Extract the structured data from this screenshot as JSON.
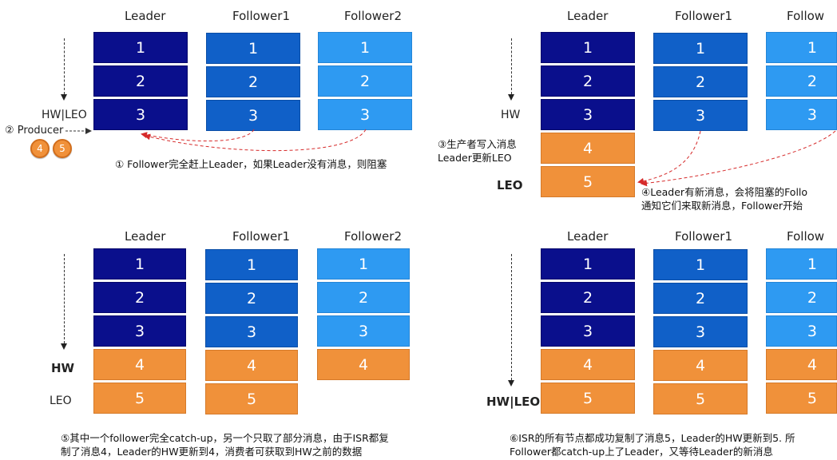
{
  "columns": {
    "leader": "Leader",
    "follower1": "Follower1",
    "follower2": "Follower2",
    "follower_cut": "Follow"
  },
  "messages": [
    "1",
    "2",
    "3",
    "4",
    "5"
  ],
  "labels": {
    "hw_leo": "HW|LEO",
    "hw": "HW",
    "leo": "LEO",
    "producer": "② Producer",
    "producer_msgs": [
      "4",
      "5"
    ]
  },
  "captions": {
    "p1": "① Follower完全赶上Leader，如果Leader没有消息，则阻塞",
    "p2_step3_line1": "③生产者写入消息",
    "p2_step3_line2": "Leader更新LEO",
    "p2_step4_line1": "④Leader有新消息，会将阻塞的Follo",
    "p2_step4_line2": "通知它们来取新消息，Follower开始",
    "p3_line1": "⑤其中一个follower完全catch-up，另一个只取了部分消息，由于ISR都复",
    "p3_line2": "制了消息4，Leader的HW更新到4，消费者可获取到HW之前的数据",
    "p4_line1": "⑥ISR的所有节点都成功复制了消息5，Leader的HW更新到5. 所",
    "p4_line2": "Follower都catch-up上了Leader，又等待Leader的新消息"
  },
  "colors": {
    "leader": "#0a0f8c",
    "follower1": "#1060c8",
    "follower2": "#2e9af2",
    "new_message": "#f0913a",
    "arrow": "#d62a2a"
  }
}
